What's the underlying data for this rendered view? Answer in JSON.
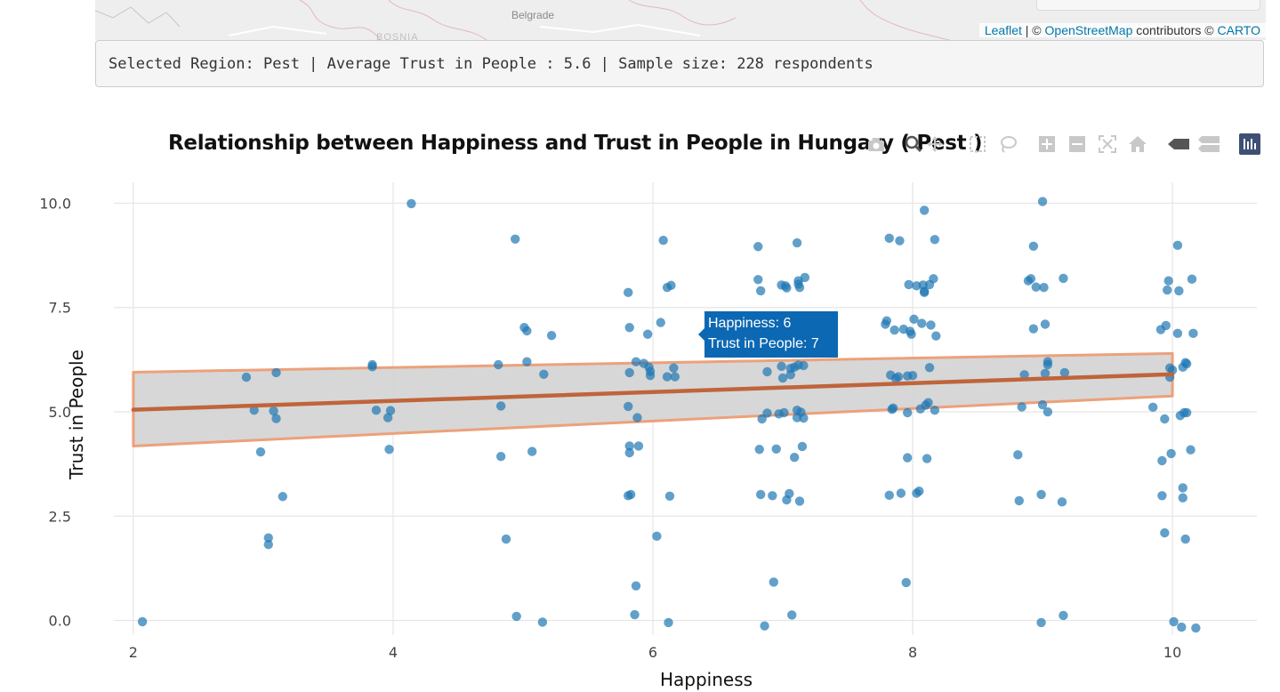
{
  "map": {
    "city_label": "Belgrade",
    "country_label": "BOSNIA",
    "attribution": {
      "leaflet": "Leaflet",
      "separator": " | © ",
      "osm": "OpenStreetMap",
      "contributors": " contributors © ",
      "carto": "CARTO"
    }
  },
  "status": {
    "text": "Selected Region: Pest | Average Trust in People : 5.6 | Sample size: 228 respondents"
  },
  "modebar": {
    "icons": [
      "camera-icon",
      "zoom-icon",
      "pan-icon",
      "box-select-icon",
      "lasso-icon",
      "zoom-in-icon",
      "zoom-out-icon",
      "autoscale-icon",
      "reset-axes-icon",
      "spike-lines-icon",
      "compare-hover-icon",
      "plotly-logo-icon"
    ]
  },
  "tooltip": {
    "line1": "Happiness: 6",
    "line2": "Trust in People: 7",
    "color": "#0c68b3"
  },
  "chart_data": {
    "type": "scatter",
    "title": "Relationship between Happiness and Trust in People in Hungary ( Pest )",
    "xlabel": "Happiness",
    "ylabel": "Trust in People",
    "xlim": [
      1.85,
      10.65
    ],
    "ylim": [
      -0.35,
      10.5
    ],
    "xticks": [
      2,
      4,
      6,
      8,
      10
    ],
    "xtick_labels": [
      "2",
      "4",
      "6",
      "8",
      "10"
    ],
    "yticks": [
      0,
      2.5,
      5,
      7.5,
      10
    ],
    "ytick_labels": [
      "0.0",
      "2.5",
      "5.0",
      "7.5",
      "10.0"
    ],
    "grid": true,
    "point_color": "#1f77b4",
    "points": [
      [
        2.07,
        -0.03
      ],
      [
        2.87,
        5.83
      ],
      [
        2.93,
        5.04
      ],
      [
        2.98,
        4.04
      ],
      [
        3.04,
        1.98
      ],
      [
        3.04,
        1.82
      ],
      [
        3.08,
        5.02
      ],
      [
        3.1,
        4.84
      ],
      [
        3.1,
        5.94
      ],
      [
        3.15,
        2.97
      ],
      [
        3.84,
        6.13
      ],
      [
        3.84,
        6.08
      ],
      [
        3.87,
        5.04
      ],
      [
        3.96,
        4.86
      ],
      [
        3.98,
        5.03
      ],
      [
        3.97,
        4.1
      ],
      [
        4.14,
        9.99
      ],
      [
        4.81,
        6.13
      ],
      [
        4.83,
        5.14
      ],
      [
        4.83,
        3.93
      ],
      [
        4.87,
        1.95
      ],
      [
        4.94,
        9.14
      ],
      [
        4.95,
        0.1
      ],
      [
        5.01,
        7.02
      ],
      [
        5.03,
        6.94
      ],
      [
        5.03,
        6.2
      ],
      [
        5.07,
        4.05
      ],
      [
        5.15,
        -0.04
      ],
      [
        5.16,
        5.9
      ],
      [
        5.22,
        6.83
      ],
      [
        5.81,
        7.86
      ],
      [
        5.82,
        7.02
      ],
      [
        5.82,
        5.94
      ],
      [
        5.82,
        4.18
      ],
      [
        5.82,
        4.02
      ],
      [
        5.81,
        5.13
      ],
      [
        5.81,
        2.99
      ],
      [
        5.83,
        3.02
      ],
      [
        5.86,
        0.14
      ],
      [
        5.87,
        0.83
      ],
      [
        5.87,
        6.2
      ],
      [
        5.88,
        4.86
      ],
      [
        5.89,
        4.18
      ],
      [
        5.93,
        6.16
      ],
      [
        5.96,
        6.86
      ],
      [
        5.97,
        6.07
      ],
      [
        5.98,
        5.97
      ],
      [
        5.98,
        5.87
      ],
      [
        6.03,
        2.02
      ],
      [
        6.06,
        7.14
      ],
      [
        6.08,
        9.11
      ],
      [
        6.11,
        7.98
      ],
      [
        6.11,
        5.84
      ],
      [
        6.12,
        -0.05
      ],
      [
        6.13,
        2.98
      ],
      [
        6.14,
        8.03
      ],
      [
        6.16,
        6.05
      ],
      [
        6.17,
        5.84
      ],
      [
        6.81,
        8.96
      ],
      [
        6.81,
        8.17
      ],
      [
        6.82,
        4.1
      ],
      [
        6.83,
        3.02
      ],
      [
        6.83,
        7.9
      ],
      [
        6.84,
        4.83
      ],
      [
        6.86,
        -0.13
      ],
      [
        6.88,
        5.96
      ],
      [
        6.88,
        4.97
      ],
      [
        6.92,
        2.99
      ],
      [
        6.93,
        0.92
      ],
      [
        6.95,
        4.11
      ],
      [
        6.97,
        4.95
      ],
      [
        6.99,
        8.04
      ],
      [
        6.99,
        6.09
      ],
      [
        7.0,
        5.81
      ],
      [
        7.01,
        4.98
      ],
      [
        7.02,
        8.02
      ],
      [
        7.03,
        2.89
      ],
      [
        7.03,
        7.97
      ],
      [
        7.05,
        3.04
      ],
      [
        7.06,
        6.04
      ],
      [
        7.06,
        5.89
      ],
      [
        7.07,
        0.13
      ],
      [
        7.09,
        6.07
      ],
      [
        7.09,
        3.91
      ],
      [
        7.11,
        9.05
      ],
      [
        7.11,
        5.04
      ],
      [
        7.11,
        4.86
      ],
      [
        7.12,
        8.14
      ],
      [
        7.12,
        8.06
      ],
      [
        7.12,
        6.12
      ],
      [
        7.13,
        7.98
      ],
      [
        7.13,
        2.86
      ],
      [
        7.14,
        4.99
      ],
      [
        7.15,
        4.17
      ],
      [
        7.16,
        4.85
      ],
      [
        7.16,
        6.11
      ],
      [
        7.17,
        8.22
      ],
      [
        7.79,
        7.1
      ],
      [
        7.8,
        7.18
      ],
      [
        7.82,
        9.16
      ],
      [
        7.82,
        3.0
      ],
      [
        7.83,
        5.88
      ],
      [
        7.84,
        5.06
      ],
      [
        7.85,
        5.09
      ],
      [
        7.86,
        6.96
      ],
      [
        7.87,
        5.8
      ],
      [
        7.89,
        5.84
      ],
      [
        7.9,
        9.1
      ],
      [
        7.91,
        3.05
      ],
      [
        7.93,
        6.98
      ],
      [
        7.95,
        0.91
      ],
      [
        7.96,
        5.86
      ],
      [
        7.96,
        4.98
      ],
      [
        7.96,
        3.9
      ],
      [
        7.97,
        8.05
      ],
      [
        7.98,
        6.93
      ],
      [
        7.99,
        6.86
      ],
      [
        8.0,
        5.87
      ],
      [
        8.01,
        7.22
      ],
      [
        8.03,
        3.05
      ],
      [
        8.03,
        8.02
      ],
      [
        8.05,
        3.1
      ],
      [
        8.06,
        5.07
      ],
      [
        8.07,
        7.12
      ],
      [
        8.08,
        8.04
      ],
      [
        8.09,
        9.83
      ],
      [
        8.09,
        7.89
      ],
      [
        8.09,
        7.86
      ],
      [
        8.1,
        5.16
      ],
      [
        8.11,
        3.88
      ],
      [
        8.12,
        5.22
      ],
      [
        8.13,
        6.06
      ],
      [
        8.13,
        8.05
      ],
      [
        8.14,
        7.08
      ],
      [
        8.16,
        8.19
      ],
      [
        8.17,
        9.13
      ],
      [
        8.17,
        5.04
      ],
      [
        8.18,
        6.82
      ],
      [
        8.81,
        3.97
      ],
      [
        8.82,
        2.87
      ],
      [
        8.84,
        5.12
      ],
      [
        8.86,
        5.89
      ],
      [
        8.89,
        8.14
      ],
      [
        8.91,
        8.19
      ],
      [
        8.93,
        8.97
      ],
      [
        8.93,
        6.99
      ],
      [
        8.95,
        7.99
      ],
      [
        8.99,
        -0.05
      ],
      [
        9.0,
        10.04
      ],
      [
        8.99,
        3.02
      ],
      [
        9.0,
        5.17
      ],
      [
        9.02,
        7.1
      ],
      [
        9.01,
        7.98
      ],
      [
        9.02,
        5.92
      ],
      [
        9.04,
        6.2
      ],
      [
        9.04,
        6.13
      ],
      [
        9.04,
        5.0
      ],
      [
        9.15,
        2.84
      ],
      [
        9.16,
        8.2
      ],
      [
        9.17,
        5.94
      ],
      [
        9.16,
        0.12
      ],
      [
        9.85,
        5.11
      ],
      [
        9.91,
        6.97
      ],
      [
        9.92,
        3.83
      ],
      [
        9.92,
        2.99
      ],
      [
        9.94,
        4.83
      ],
      [
        9.95,
        7.07
      ],
      [
        9.94,
        2.1
      ],
      [
        9.96,
        7.92
      ],
      [
        9.97,
        8.14
      ],
      [
        9.98,
        6.05
      ],
      [
        9.98,
        5.83
      ],
      [
        9.99,
        4.0
      ],
      [
        10.0,
        6.0
      ],
      [
        10.01,
        -0.03
      ],
      [
        10.04,
        8.99
      ],
      [
        10.04,
        6.88
      ],
      [
        10.05,
        7.9
      ],
      [
        10.06,
        4.91
      ],
      [
        10.07,
        -0.16
      ],
      [
        10.08,
        3.18
      ],
      [
        10.08,
        2.94
      ],
      [
        10.08,
        6.07
      ],
      [
        10.09,
        4.98
      ],
      [
        10.1,
        1.95
      ],
      [
        10.1,
        6.18
      ],
      [
        10.11,
        6.15
      ],
      [
        10.11,
        4.98
      ],
      [
        10.14,
        4.09
      ],
      [
        10.15,
        8.18
      ],
      [
        10.16,
        6.88
      ],
      [
        10.18,
        -0.18
      ]
    ],
    "trend_line": {
      "color": "#c0643a",
      "x": [
        2,
        10
      ],
      "y": [
        5.05,
        5.9
      ],
      "ci_lower": [
        4.18,
        5.38
      ],
      "ci_upper": [
        5.95,
        6.4
      ],
      "ci_fill": "#d3d3d3",
      "ci_border": "#eca17a"
    }
  }
}
